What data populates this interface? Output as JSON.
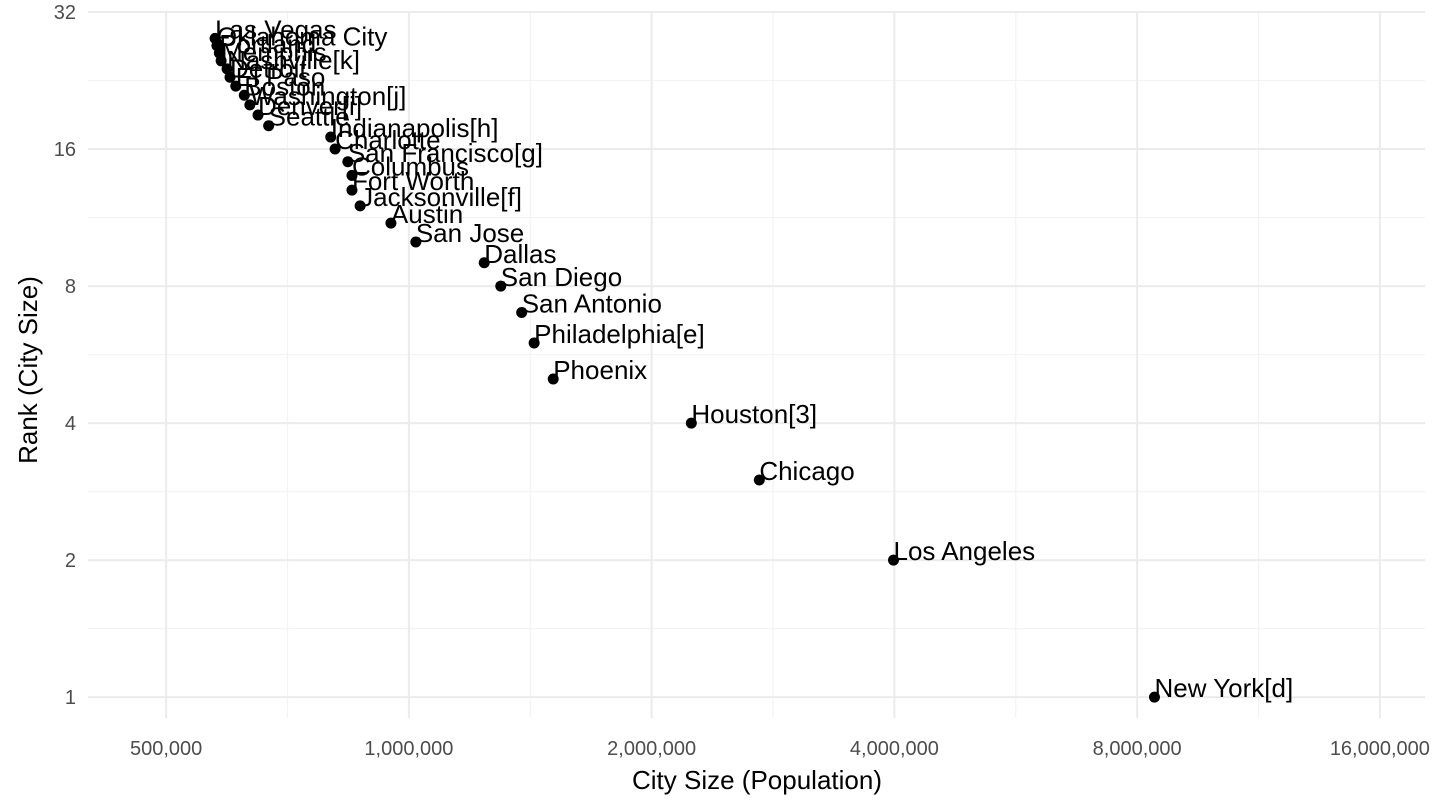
{
  "chart_data": {
    "type": "scatter",
    "title": "",
    "xlabel": "City Size (Population)",
    "ylabel": "Rank (City Size)",
    "x_scale": "log",
    "y_scale": "log",
    "xlim": [
      400000,
      18200000
    ],
    "ylim": [
      0.9,
      32
    ],
    "grid": true,
    "legend": "none",
    "x_ticks": [
      {
        "value": 500000,
        "label": "500,000"
      },
      {
        "value": 1000000,
        "label": "1,000,000"
      },
      {
        "value": 2000000,
        "label": "2,000,000"
      },
      {
        "value": 4000000,
        "label": "4,000,000"
      },
      {
        "value": 8000000,
        "label": "8,000,000"
      },
      {
        "value": 16000000,
        "label": "16,000,000"
      }
    ],
    "y_ticks": [
      {
        "value": 1,
        "label": "1"
      },
      {
        "value": 2,
        "label": "2"
      },
      {
        "value": 4,
        "label": "4"
      },
      {
        "value": 8,
        "label": "8"
      },
      {
        "value": 16,
        "label": "16"
      },
      {
        "value": 32,
        "label": "32"
      }
    ],
    "points": [
      {
        "label": "New York[d]",
        "x": 8405837,
        "y": 1
      },
      {
        "label": "Los Angeles",
        "x": 3990000,
        "y": 2
      },
      {
        "label": "Chicago",
        "x": 2720000,
        "y": 3
      },
      {
        "label": "Houston[3]",
        "x": 2240000,
        "y": 4
      },
      {
        "label": "Phoenix",
        "x": 1510000,
        "y": 5
      },
      {
        "label": "Philadelphia[e]",
        "x": 1430000,
        "y": 6
      },
      {
        "label": "San Antonio",
        "x": 1380000,
        "y": 7
      },
      {
        "label": "San Diego",
        "x": 1300000,
        "y": 8
      },
      {
        "label": "Dallas",
        "x": 1240000,
        "y": 9
      },
      {
        "label": "San Jose",
        "x": 1020000,
        "y": 10
      },
      {
        "label": "Austin",
        "x": 950000,
        "y": 11
      },
      {
        "label": "Jacksonville[f]",
        "x": 870000,
        "y": 12
      },
      {
        "label": "Fort Worth",
        "x": 850000,
        "y": 13
      },
      {
        "label": "Columbus",
        "x": 850000,
        "y": 14
      },
      {
        "label": "San Francisco[g]",
        "x": 840000,
        "y": 15
      },
      {
        "label": "Charlotte",
        "x": 810000,
        "y": 16
      },
      {
        "label": "Indianapolis[h]",
        "x": 800000,
        "y": 17
      },
      {
        "label": "Seattle",
        "x": 670000,
        "y": 18
      },
      {
        "label": "Denver[i]",
        "x": 650000,
        "y": 19
      },
      {
        "label": "Washington[j]",
        "x": 635000,
        "y": 20
      },
      {
        "label": "Boston",
        "x": 625000,
        "y": 21
      },
      {
        "label": "El Paso",
        "x": 610000,
        "y": 22
      },
      {
        "label": "Detroit",
        "x": 600000,
        "y": 23
      },
      {
        "label": "Nashville[k]",
        "x": 595000,
        "y": 24
      },
      {
        "label": "Memphis",
        "x": 585000,
        "y": 25
      },
      {
        "label": "Portland",
        "x": 582000,
        "y": 26
      },
      {
        "label": "Oklahoma City",
        "x": 578000,
        "y": 27
      },
      {
        "label": "Las Vegas",
        "x": 575000,
        "y": 28
      }
    ]
  }
}
